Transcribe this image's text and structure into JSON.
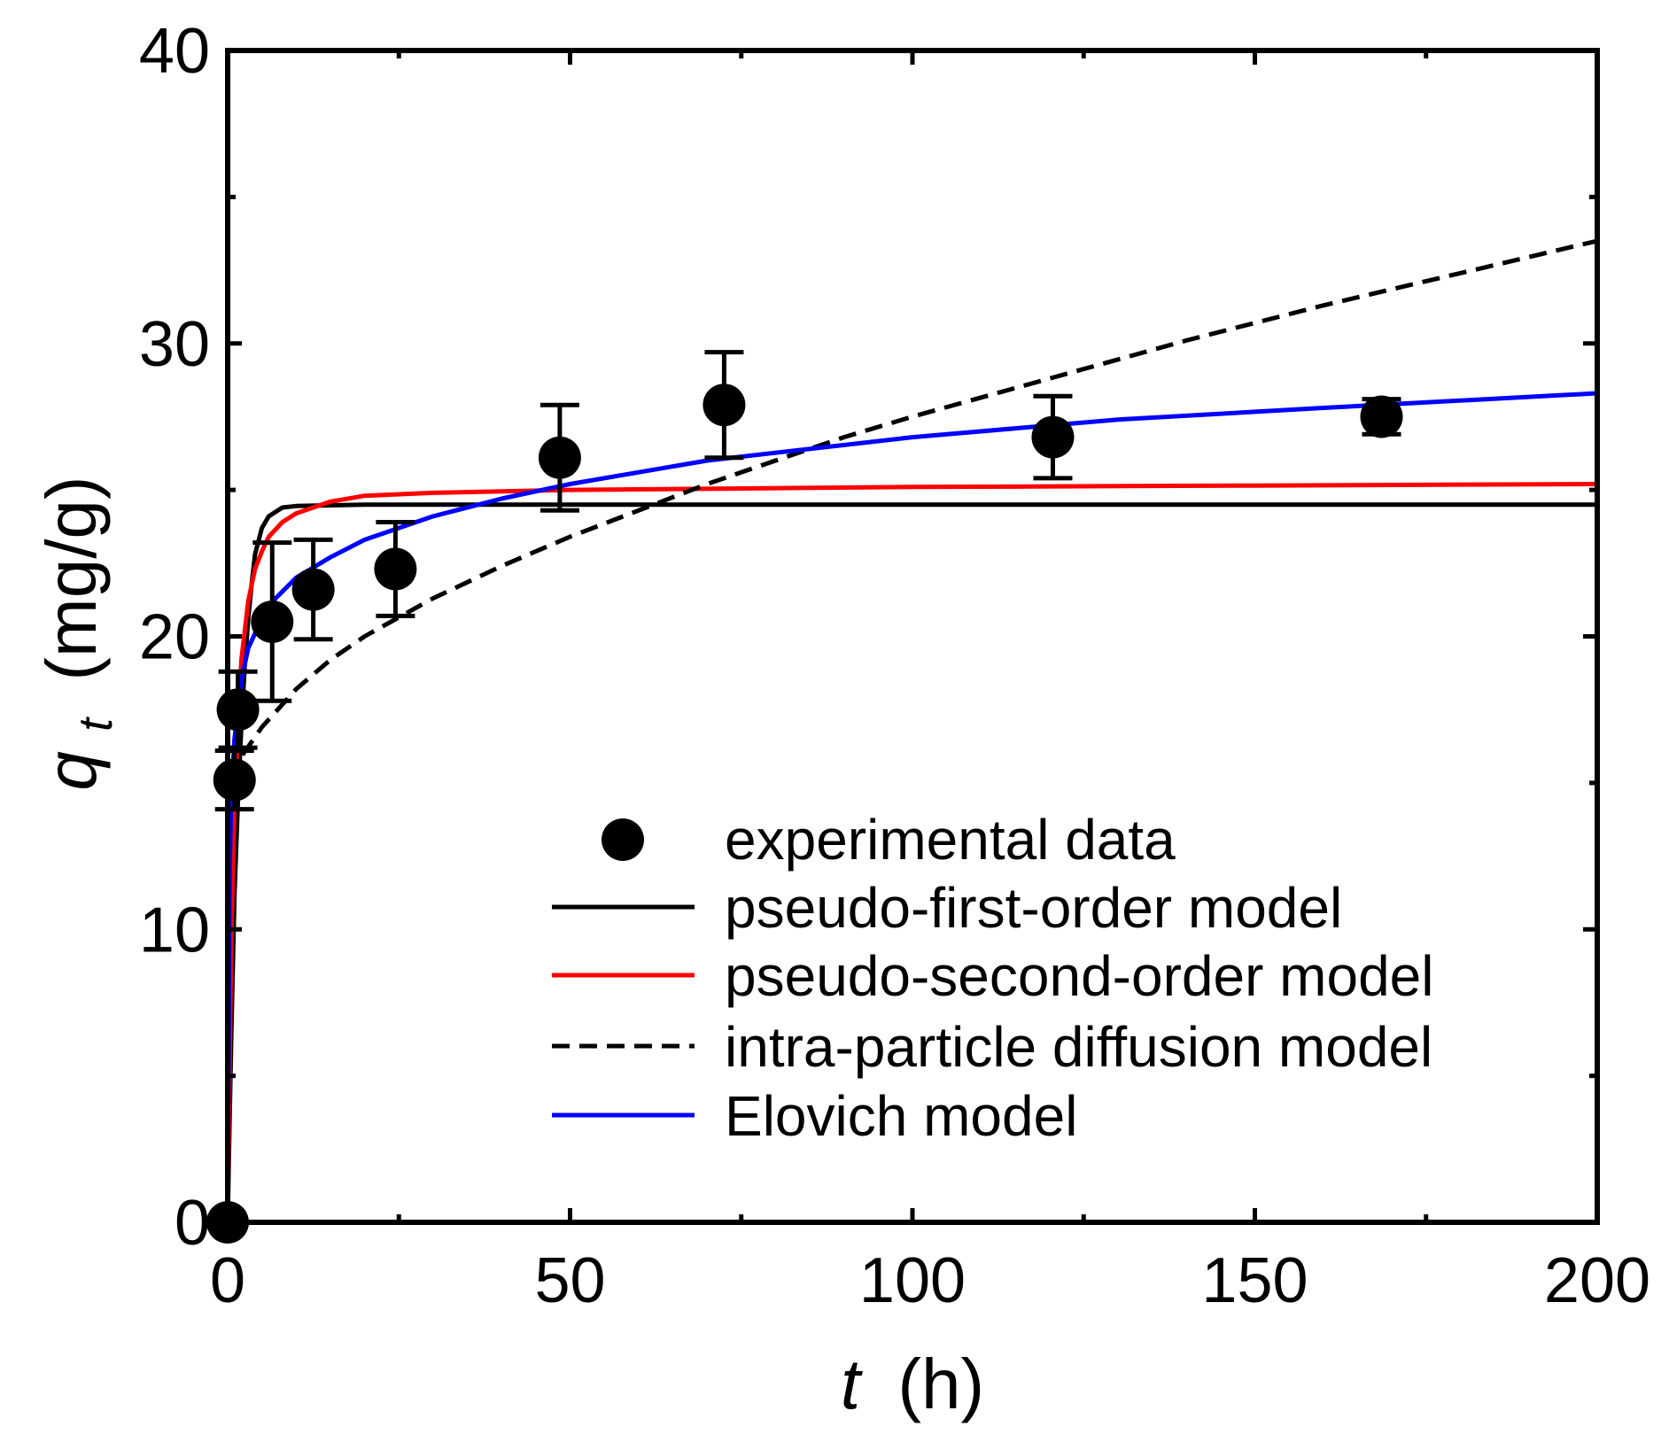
{
  "chart_data": {
    "type": "line",
    "title": "",
    "xlabel": {
      "var": "t",
      "unit": "(h)"
    },
    "ylabel": {
      "var": "q",
      "sub": "t",
      "unit": "(mg/g)"
    },
    "xlim": [
      0,
      200
    ],
    "ylim": [
      0,
      40
    ],
    "x_ticks": [
      0,
      50,
      100,
      150,
      200
    ],
    "y_ticks": [
      0,
      10,
      20,
      30,
      40
    ],
    "x_tick_labels": [
      "0",
      "50",
      "100",
      "150",
      "200"
    ],
    "y_tick_labels": [
      "0",
      "10",
      "20",
      "30",
      "40"
    ],
    "grid": false,
    "legend_position": "bottom-right",
    "experimental": {
      "name": "experimental data",
      "points": [
        {
          "x": 0,
          "y": 0,
          "err": 0
        },
        {
          "x": 1,
          "y": 15.1,
          "err": 1.0
        },
        {
          "x": 1.5,
          "y": 17.5,
          "err": 1.3
        },
        {
          "x": 6.5,
          "y": 20.5,
          "err": 2.7
        },
        {
          "x": 12.5,
          "y": 21.6,
          "err": 1.7
        },
        {
          "x": 24.5,
          "y": 22.3,
          "err": 1.6
        },
        {
          "x": 48.5,
          "y": 26.1,
          "err": 1.8
        },
        {
          "x": 72.5,
          "y": 27.9,
          "err": 1.8
        },
        {
          "x": 120.5,
          "y": 26.8,
          "err": 1.4
        },
        {
          "x": 168.5,
          "y": 27.5,
          "err": 0.6
        }
      ]
    },
    "series": [
      {
        "name": "pseudo-first-order model",
        "color": "#000000",
        "dash": "solid",
        "x": [
          0,
          0.5,
          1,
          1.5,
          2,
          2.5,
          3,
          3.5,
          4,
          5,
          6,
          8,
          10,
          20,
          50,
          100,
          150,
          200
        ],
        "y": [
          0,
          6.1,
          11.2,
          14.4,
          17.0,
          19.0,
          20.6,
          21.8,
          22.8,
          23.7,
          24.1,
          24.4,
          24.45,
          24.5,
          24.5,
          24.5,
          24.5,
          24.5
        ]
      },
      {
        "name": "pseudo-second-order model",
        "color": "#ff0000",
        "dash": "solid",
        "x": [
          0,
          0.5,
          1,
          2,
          3,
          4,
          5,
          6,
          8,
          10,
          15,
          20,
          30,
          50,
          75,
          100,
          150,
          200
        ],
        "y": [
          0,
          9.3,
          14.4,
          19.2,
          21.2,
          22.3,
          22.9,
          23.4,
          23.9,
          24.2,
          24.6,
          24.8,
          24.9,
          25.0,
          25.05,
          25.1,
          25.15,
          25.2
        ]
      },
      {
        "name": "intra-particle diffusion model",
        "color": "#000000",
        "dash": "dashed",
        "x": [
          0.5,
          1,
          2,
          5,
          10,
          15,
          20,
          30,
          40,
          50,
          60,
          70,
          80,
          90,
          100,
          120,
          140,
          160,
          180,
          200
        ],
        "y": [
          15.1,
          15.4,
          15.9,
          16.9,
          18.2,
          19.2,
          20.0,
          21.3,
          22.4,
          23.4,
          24.3,
          25.2,
          26.0,
          26.8,
          27.5,
          28.8,
          30.1,
          31.3,
          32.4,
          33.5
        ]
      },
      {
        "name": "Elovich model",
        "color": "#0000ff",
        "dash": "solid",
        "x": [
          0,
          0.3,
          0.5,
          1,
          2,
          3,
          5,
          7,
          10,
          15,
          20,
          30,
          40,
          50,
          70,
          100,
          130,
          160,
          200
        ],
        "y": [
          0,
          12.0,
          14.5,
          16.5,
          18.5,
          19.6,
          20.6,
          21.3,
          22.0,
          22.7,
          23.3,
          24.1,
          24.7,
          25.2,
          26.0,
          26.8,
          27.4,
          27.8,
          28.3
        ]
      }
    ]
  }
}
